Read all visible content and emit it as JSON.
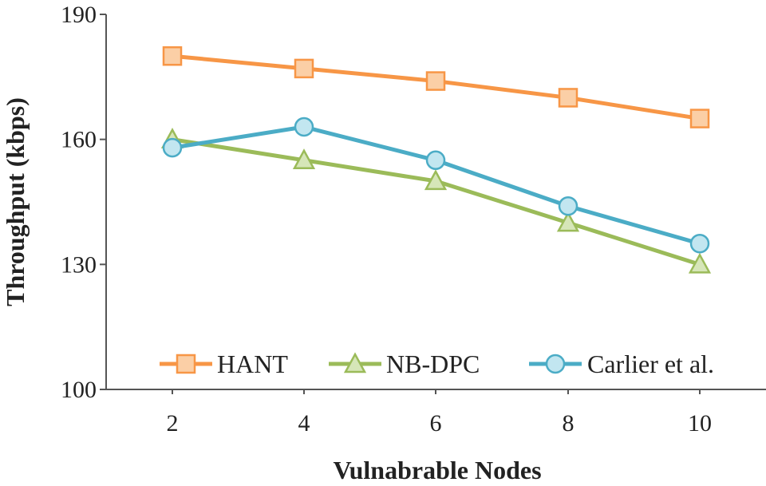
{
  "chart_data": {
    "type": "line",
    "title": "",
    "xlabel": "Vulnabrable Nodes",
    "ylabel": "Throughput (kbps)",
    "x": [
      2,
      4,
      6,
      8,
      10
    ],
    "x_tick_labels": [
      "2",
      "4",
      "6",
      "8",
      "10"
    ],
    "ylim": [
      100,
      190
    ],
    "y_ticks": [
      100,
      130,
      160,
      190
    ],
    "y_tick_labels": [
      "100",
      "130",
      "160",
      "190"
    ],
    "grid": false,
    "legend_position": "bottom-inside",
    "series": [
      {
        "name": "HANT",
        "marker": "square",
        "color": "#F79646",
        "fill": "#FBCFA6",
        "values": [
          180,
          177,
          174,
          170,
          165
        ]
      },
      {
        "name": "NB-DPC",
        "marker": "triangle",
        "color": "#9BBB59",
        "fill": "#D6E6B8",
        "values": [
          160,
          155,
          150,
          140,
          130
        ]
      },
      {
        "name": "Carlier et al.",
        "marker": "circle",
        "color": "#4BACC6",
        "fill": "#C2E6F0",
        "values": [
          158,
          163,
          155,
          144,
          135
        ]
      }
    ]
  }
}
